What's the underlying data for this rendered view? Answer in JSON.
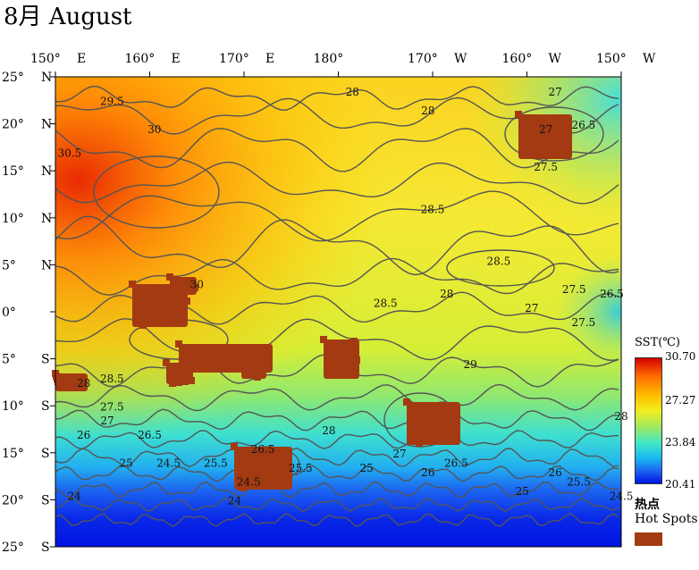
{
  "title": "8月 August",
  "lon_ticks": [
    {
      "deg": "150°",
      "hemi": "E"
    },
    {
      "deg": "160°",
      "hemi": "E"
    },
    {
      "deg": "170°",
      "hemi": "E"
    },
    {
      "deg": "180°",
      "hemi": ""
    },
    {
      "deg": "170°",
      "hemi": "W"
    },
    {
      "deg": "160°",
      "hemi": "W"
    },
    {
      "deg": "150°",
      "hemi": "W"
    }
  ],
  "lat_ticks": [
    {
      "deg": "25°",
      "hemi": "N"
    },
    {
      "deg": "20°",
      "hemi": "N"
    },
    {
      "deg": "15°",
      "hemi": "N"
    },
    {
      "deg": "10°",
      "hemi": "N"
    },
    {
      "deg": "5°",
      "hemi": "N"
    },
    {
      "deg": "0°",
      "hemi": ""
    },
    {
      "deg": "5°",
      "hemi": "S"
    },
    {
      "deg": "10°",
      "hemi": "S"
    },
    {
      "deg": "15°",
      "hemi": "S"
    },
    {
      "deg": "20°",
      "hemi": "S"
    },
    {
      "deg": "25°",
      "hemi": "S"
    }
  ],
  "contour_labels": [
    {
      "text": "29.5",
      "lon": 156,
      "lat": 22
    },
    {
      "text": "30",
      "lon": 160.5,
      "lat": 19
    },
    {
      "text": "30.5",
      "lon": 151.5,
      "lat": 16.5
    },
    {
      "text": "28",
      "lon": 181.5,
      "lat": 23
    },
    {
      "text": "28",
      "lon": 189.5,
      "lat": 21
    },
    {
      "text": "27",
      "lon": 203,
      "lat": 23
    },
    {
      "text": "27",
      "lon": 202,
      "lat": 19
    },
    {
      "text": "26.5",
      "lon": 206,
      "lat": 19.5
    },
    {
      "text": "27.5",
      "lon": 202,
      "lat": 15
    },
    {
      "text": "28.5",
      "lon": 190,
      "lat": 10.5
    },
    {
      "text": "28.5",
      "lon": 197,
      "lat": 5
    },
    {
      "text": "30",
      "lon": 165,
      "lat": 2.5
    },
    {
      "text": "27.5",
      "lon": 205,
      "lat": 2
    },
    {
      "text": "26.5",
      "lon": 209,
      "lat": 1.5
    },
    {
      "text": "28",
      "lon": 191.5,
      "lat": 1.5
    },
    {
      "text": "28.5",
      "lon": 185,
      "lat": 0.5
    },
    {
      "text": "27",
      "lon": 200.5,
      "lat": 0
    },
    {
      "text": "27.5",
      "lon": 206,
      "lat": -1.5
    },
    {
      "text": "29",
      "lon": 194,
      "lat": -6
    },
    {
      "text": "28.5",
      "lon": 156,
      "lat": -7.5
    },
    {
      "text": "28",
      "lon": 153,
      "lat": -8
    },
    {
      "text": "27.5",
      "lon": 156,
      "lat": -10.5
    },
    {
      "text": "27",
      "lon": 155.5,
      "lat": -12
    },
    {
      "text": "26.5",
      "lon": 160,
      "lat": -13.5
    },
    {
      "text": "26",
      "lon": 153,
      "lat": -13.5
    },
    {
      "text": "28",
      "lon": 179,
      "lat": -13
    },
    {
      "text": "28",
      "lon": 210,
      "lat": -11.5
    },
    {
      "text": "25",
      "lon": 157.5,
      "lat": -16.5
    },
    {
      "text": "24.5",
      "lon": 162,
      "lat": -16.5
    },
    {
      "text": "25.5",
      "lon": 167,
      "lat": -16.5
    },
    {
      "text": "26.5",
      "lon": 172,
      "lat": -15
    },
    {
      "text": "25.5",
      "lon": 176,
      "lat": -17
    },
    {
      "text": "25",
      "lon": 183,
      "lat": -17
    },
    {
      "text": "27",
      "lon": 186.5,
      "lat": -15.5
    },
    {
      "text": "26",
      "lon": 189.5,
      "lat": -17.5
    },
    {
      "text": "26.5",
      "lon": 192.5,
      "lat": -16.5
    },
    {
      "text": "26",
      "lon": 203,
      "lat": -17.5
    },
    {
      "text": "25.5",
      "lon": 205.5,
      "lat": -18.5
    },
    {
      "text": "25",
      "lon": 199.5,
      "lat": -19.5
    },
    {
      "text": "24.5",
      "lon": 170.5,
      "lat": -18.5
    },
    {
      "text": "24",
      "lon": 169,
      "lat": -20.5
    },
    {
      "text": "24",
      "lon": 152,
      "lat": -20
    },
    {
      "text": "24.5",
      "lon": 210,
      "lat": -20
    }
  ],
  "legend": {
    "title": "SST(℃)",
    "labels": [
      "30.70",
      "27.27",
      "23.84",
      "20.41"
    ],
    "colors": [
      "#d40000",
      "#ff6a00",
      "#ffc000",
      "#f2ee1e",
      "#9fe860",
      "#3fe8c8",
      "#18b8f0",
      "#1c64f0",
      "#0014e6"
    ]
  },
  "hotspot_legend": {
    "label_cn": "热点",
    "label_en": "Hot Spots",
    "color": "#a33a12"
  }
}
